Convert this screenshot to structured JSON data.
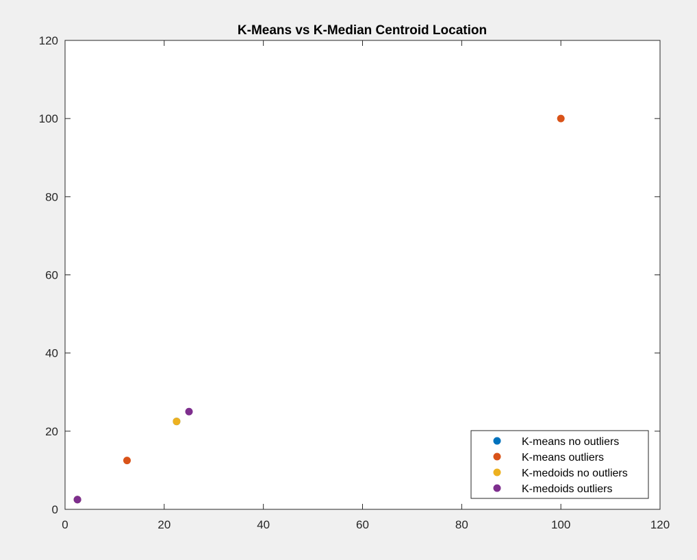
{
  "chart_data": {
    "type": "scatter",
    "title": "K-Means vs K-Median Centroid Location",
    "xlabel": "",
    "ylabel": "",
    "xlim": [
      0,
      120
    ],
    "ylim": [
      0,
      120
    ],
    "xticks": [
      "0",
      "20",
      "40",
      "60",
      "80",
      "100",
      "120"
    ],
    "yticks": [
      "0",
      "20",
      "40",
      "60",
      "80",
      "100",
      "120"
    ],
    "grid": false,
    "legend_position": "bottom-right",
    "series": [
      {
        "name": "K-means no outliers",
        "color": "#0072bd",
        "points": [
          [
            2.5,
            2.5
          ],
          [
            22.5,
            22.5
          ]
        ]
      },
      {
        "name": "K-means outliers",
        "color": "#d95319",
        "points": [
          [
            12.5,
            12.5
          ],
          [
            100,
            100
          ]
        ]
      },
      {
        "name": "K-medoids no outliers",
        "color": "#edb120",
        "points": [
          [
            2.5,
            2.5
          ],
          [
            22.5,
            22.5
          ]
        ]
      },
      {
        "name": "K-medoids outliers",
        "color": "#7e2f8e",
        "points": [
          [
            2.5,
            2.5
          ],
          [
            25,
            25
          ]
        ]
      }
    ]
  }
}
